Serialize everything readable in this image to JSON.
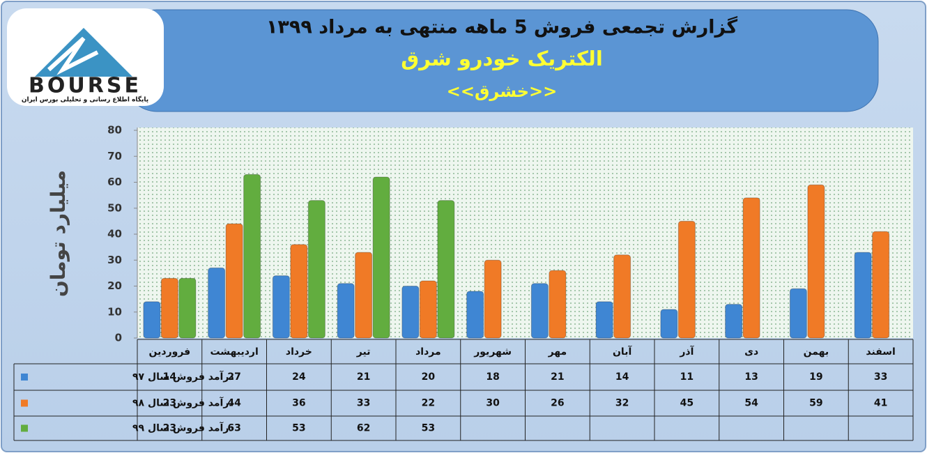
{
  "logo": {
    "text": "BOURSE",
    "caption": "پایگاه اطلاع رسانی و تحلیلی بورس ایران"
  },
  "chart_data": {
    "type": "bar",
    "title": "گزارش تجمعی فروش  5 ماهه منتهی به مرداد ۱۳۹۹",
    "subtitle": "الکتریک خودرو شرق",
    "symbol": "<<خشرق>>",
    "y_label": "میلیارد تومان",
    "categories": [
      "فروردین",
      "اردیبهشت",
      "خرداد",
      "تیر",
      "مرداد",
      "شهریور",
      "مهر",
      "آبان",
      "آذر",
      "دی",
      "بهمن",
      "اسفند"
    ],
    "series": [
      {
        "name": "درآمد فروش سال ۹۷",
        "color": "#3f86d3",
        "values": [
          14,
          27,
          24,
          21,
          20,
          18,
          21,
          14,
          11,
          13,
          19,
          33
        ]
      },
      {
        "name": "درآمد فروش سال ۹۸",
        "color": "#f07a26",
        "values": [
          23,
          44,
          36,
          33,
          22,
          30,
          26,
          32,
          45,
          54,
          59,
          41
        ]
      },
      {
        "name": "درآمد فروش سال ۹۹",
        "color": "#62ad3f",
        "values": [
          23,
          63,
          53,
          62,
          53,
          null,
          null,
          null,
          null,
          null,
          null,
          null
        ]
      }
    ],
    "ylim": [
      0,
      80
    ],
    "yticks": [
      0,
      10,
      20,
      30,
      40,
      50,
      60,
      70,
      80
    ],
    "grid": false
  }
}
